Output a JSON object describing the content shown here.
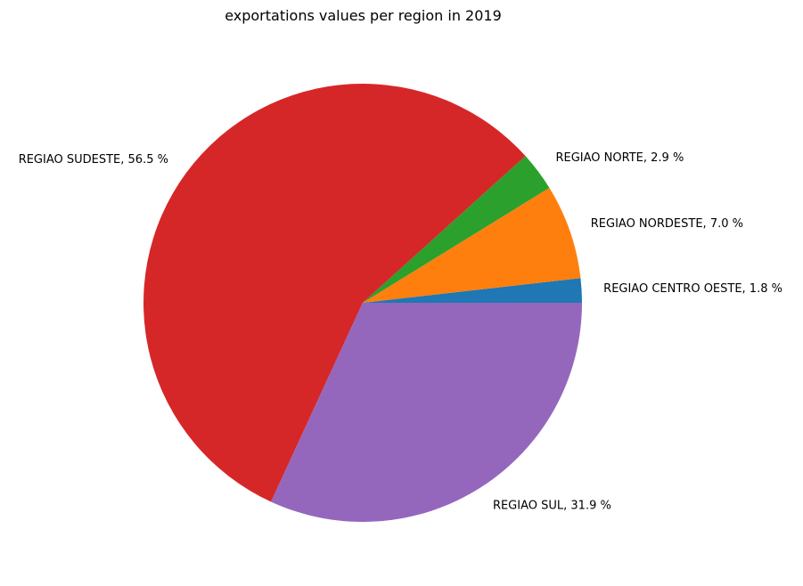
{
  "chart_data": {
    "type": "pie",
    "title": "exportations values per region in 2019",
    "slices": [
      {
        "label": "REGIAO CENTRO OESTE, 1.8 %",
        "value": 1.8,
        "color": "#1f77b4"
      },
      {
        "label": "REGIAO NORDESTE, 7.0 %",
        "value": 7.0,
        "color": "#ff7f0e"
      },
      {
        "label": "REGIAO NORTE, 2.9 %",
        "value": 2.9,
        "color": "#2ca02c"
      },
      {
        "label": "REGIAO SUDESTE, 56.5 %",
        "value": 56.5,
        "color": "#d62728"
      },
      {
        "label": "REGIAO SUL, 31.9 %",
        "value": 31.9,
        "color": "#9467bd"
      }
    ],
    "start_angle": 0,
    "direction": "counterclockwise",
    "legend": "none"
  }
}
